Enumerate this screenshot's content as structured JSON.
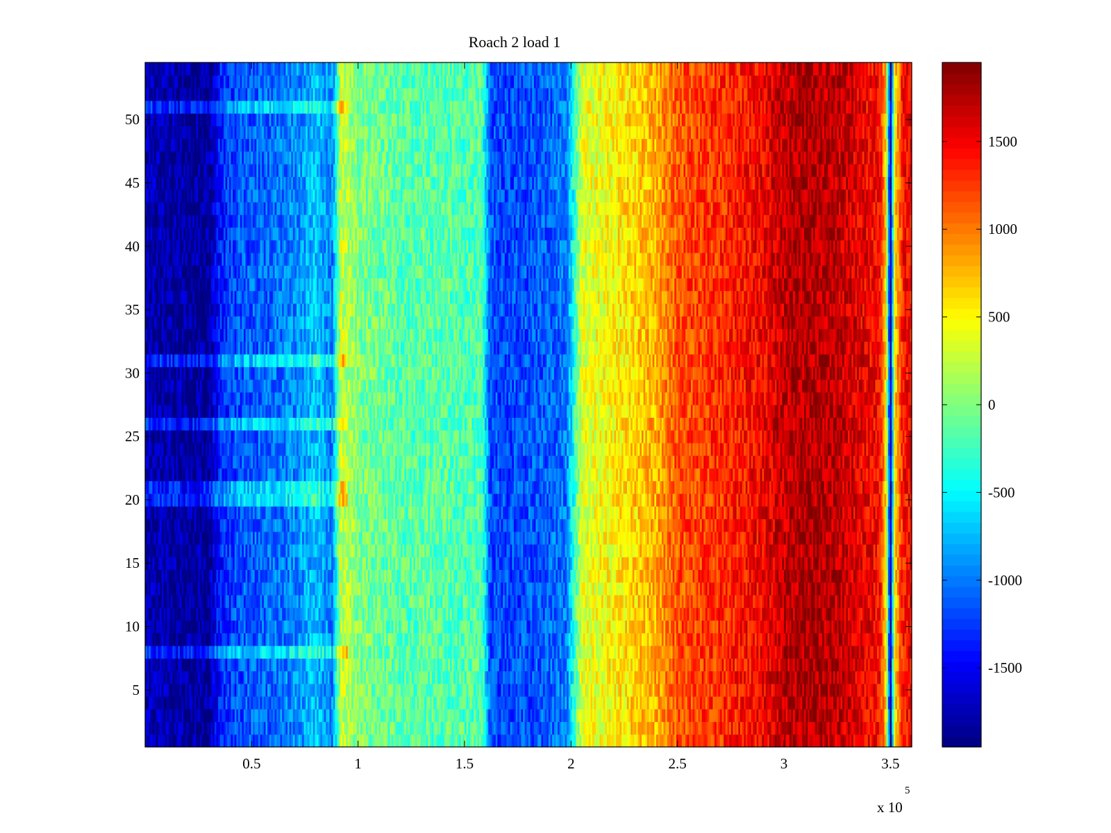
{
  "chart_data": {
    "type": "heatmap",
    "title": "Roach 2 load 1",
    "xlabel": "",
    "ylabel": "",
    "x_multiplier_label": "x 10",
    "x_multiplier_exponent": "5",
    "xlim": [
      0,
      360000
    ],
    "ylim": [
      0.5,
      54.5
    ],
    "x_ticks": [
      50000,
      100000,
      150000,
      200000,
      250000,
      300000,
      350000
    ],
    "x_tick_labels": [
      "0.5",
      "1",
      "1.5",
      "2",
      "2.5",
      "3",
      "3.5"
    ],
    "y_ticks": [
      5,
      10,
      15,
      20,
      25,
      30,
      35,
      40,
      45,
      50
    ],
    "y_tick_labels": [
      "5",
      "10",
      "15",
      "20",
      "25",
      "30",
      "35",
      "40",
      "45",
      "50"
    ],
    "rows": 54,
    "colormap": "jet",
    "clim": [
      -1950,
      1950
    ],
    "colorbar": {
      "ticks": [
        -1500,
        -1000,
        -500,
        0,
        500,
        1000,
        1500
      ],
      "tick_labels": [
        "-1500",
        "-1000",
        "-500",
        "0",
        "500",
        "1000",
        "1500"
      ]
    },
    "column_profile": {
      "x": [
        0,
        10000,
        20000,
        30000,
        35000,
        45000,
        60000,
        70000,
        75000,
        80000,
        85000,
        88000,
        92000,
        100000,
        120000,
        140000,
        150000,
        158000,
        162000,
        170000,
        190000,
        198000,
        205000,
        220000,
        240000,
        250000,
        270000,
        290000,
        300000,
        310000,
        320000,
        330000,
        340000,
        345000,
        348000,
        350000,
        352000,
        356000,
        360000
      ],
      "values": [
        -1750,
        -1800,
        -1850,
        -1850,
        -1350,
        -1150,
        -1050,
        -950,
        -850,
        -700,
        -900,
        -950,
        300,
        0,
        -150,
        -150,
        -200,
        -150,
        -1150,
        -1200,
        -1100,
        -1000,
        350,
        500,
        800,
        1150,
        1300,
        1500,
        1700,
        1800,
        1750,
        1650,
        1500,
        1450,
        600,
        -1850,
        600,
        1400,
        1500
      ]
    },
    "row_bands": [
      {
        "rows": [
          8,
          8
        ],
        "effect": "bright"
      },
      {
        "rows": [
          20,
          21
        ],
        "effect": "bright"
      },
      {
        "rows": [
          26,
          26
        ],
        "effect": "bright"
      },
      {
        "rows": [
          31,
          31
        ],
        "effect": "bright"
      },
      {
        "rows": [
          51,
          51
        ],
        "effect": "bright"
      }
    ],
    "noise_amplitude": 300
  }
}
